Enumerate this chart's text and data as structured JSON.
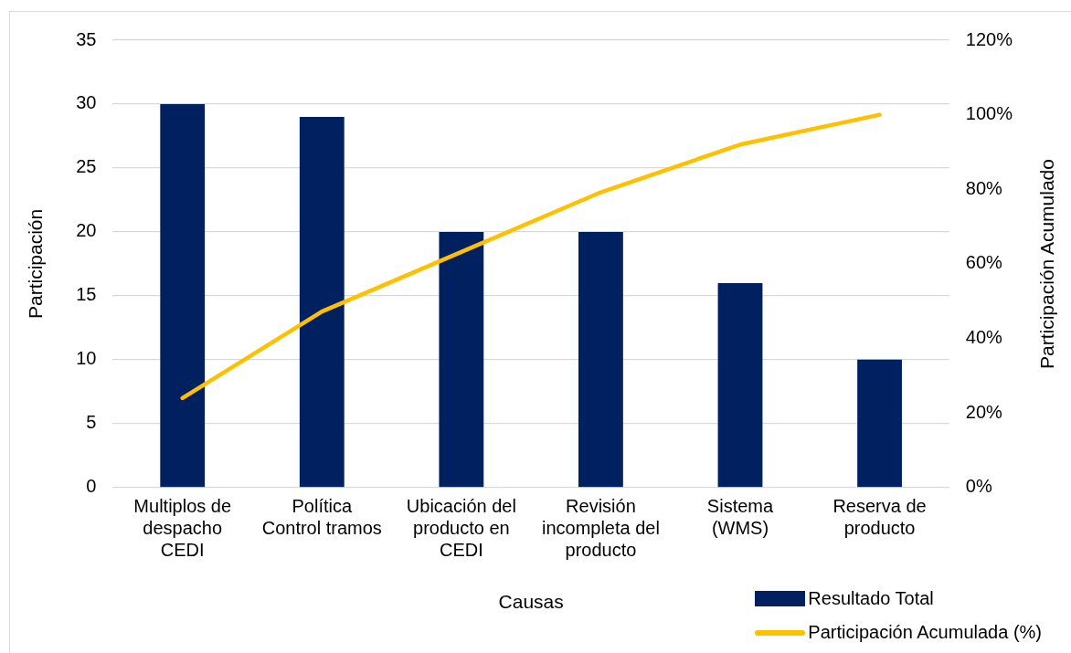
{
  "chart_data": {
    "type": "bar",
    "xlabel": "Causas",
    "ylabel": "Participación",
    "y2label": "Participación Acumulado",
    "categories": [
      "Multiplos de despacho CEDI",
      "Política Control tramos",
      "Ubicación del producto en CEDI",
      "Revisión incompleta del producto",
      "Sistema (WMS)",
      "Reserva de producto"
    ],
    "series": [
      {
        "name": "Resultado Total",
        "color": "#002060",
        "values": [
          30,
          29,
          20,
          20,
          16,
          10
        ]
      },
      {
        "name": "Participación Acumulada (%)",
        "type": "line",
        "axis": "y2",
        "color": "#ffc000",
        "values": [
          24,
          47.2,
          63.2,
          79.2,
          92,
          100
        ]
      }
    ],
    "ylim": [
      0,
      35
    ],
    "yticks": [
      0,
      5,
      10,
      15,
      20,
      25,
      30,
      35
    ],
    "y2lim": [
      0,
      120
    ],
    "y2ticks": [
      {
        "value": 0,
        "label": "0%"
      },
      {
        "value": 20,
        "label": "20%"
      },
      {
        "value": 40,
        "label": "40%"
      },
      {
        "value": 60,
        "label": "60%"
      },
      {
        "value": 80,
        "label": "80%"
      },
      {
        "value": 100,
        "label": "100%"
      },
      {
        "value": 120,
        "label": "120%"
      }
    ],
    "grid": "y",
    "legend": "bottom right",
    "marker": "none"
  }
}
